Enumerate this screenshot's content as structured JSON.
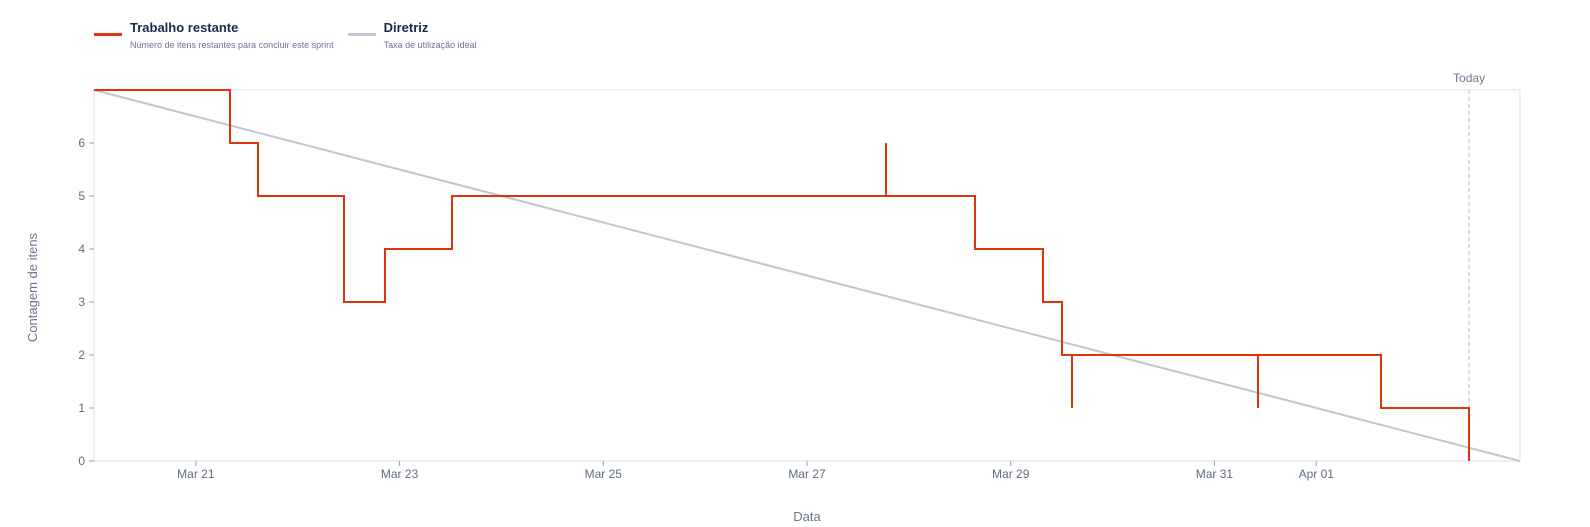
{
  "legend": [
    {
      "name": "Trabalho restante",
      "description": "Número de itens restantes para concluir este sprint",
      "color": "#de350b"
    },
    {
      "name": "Diretriz",
      "description": "Taxa de utilização ideal",
      "color": "#c1c7d0"
    }
  ],
  "chart_data": {
    "type": "line",
    "xlabel": "Data",
    "ylabel": "Contagem de itens",
    "x_range_days": [
      -1,
      27
    ],
    "ylim": [
      0,
      7
    ],
    "y_ticks": [
      0,
      1,
      2,
      3,
      4,
      5,
      6
    ],
    "x_ticks": [
      {
        "label": "Mar 21",
        "day": 1
      },
      {
        "label": "Mar 23",
        "day": 5
      },
      {
        "label": "Mar 25",
        "day": 9
      },
      {
        "label": "Mar 27",
        "day": 13
      },
      {
        "label": "Mar 29",
        "day": 17
      },
      {
        "label": "Mar 31",
        "day": 21
      },
      {
        "label": "Apr 01",
        "day": 23
      }
    ],
    "today": {
      "label": "Today",
      "day": 26
    }
  }
}
